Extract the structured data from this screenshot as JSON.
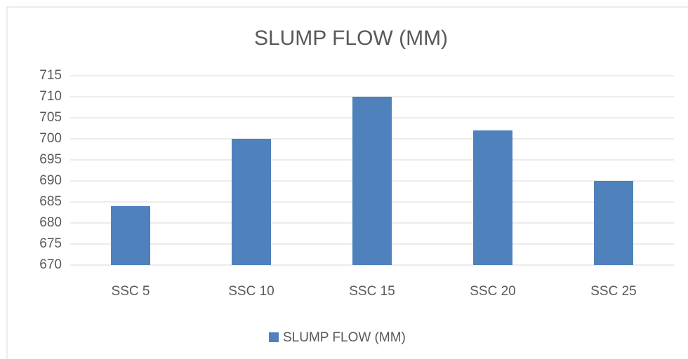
{
  "chart_data": {
    "type": "bar",
    "title": "SLUMP FLOW (MM)",
    "categories": [
      "SSC 5",
      "SSC 10",
      "SSC 15",
      "SSC 20",
      "SSC 25"
    ],
    "series": [
      {
        "name": "SLUMP FLOW (MM)",
        "color": "#4f81bd",
        "values": [
          684,
          700,
          710,
          702,
          690
        ]
      }
    ],
    "ylim": [
      670,
      715
    ],
    "yticks": [
      670,
      675,
      680,
      685,
      690,
      695,
      700,
      705,
      710,
      715
    ],
    "grid": true,
    "legend": "bottom"
  }
}
